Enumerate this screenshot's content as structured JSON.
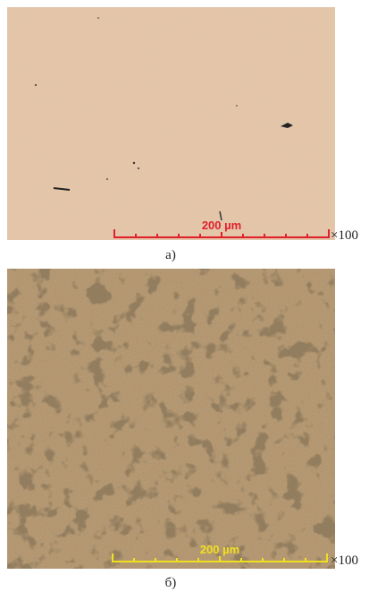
{
  "panels": [
    {
      "scale_label": "200 µm",
      "magnification": "×100",
      "caption": "а)"
    },
    {
      "scale_label": "200 µm",
      "magnification": "×100",
      "caption": "б)"
    }
  ]
}
